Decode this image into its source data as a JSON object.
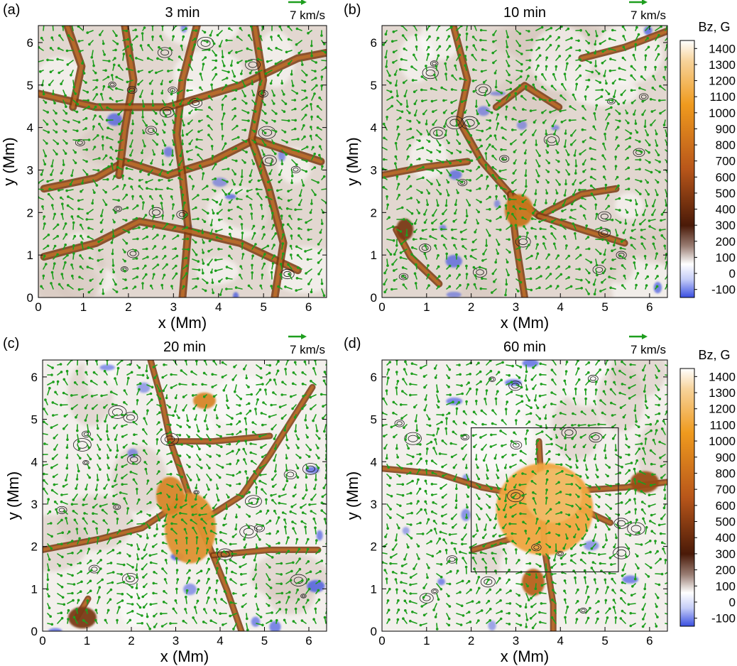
{
  "figure": {
    "colorbar_label": "Bz, G",
    "vector_label": "7 km/s",
    "colors": {
      "vector": "#1e9e1e",
      "contour": "#1a1a1a",
      "negative": "#3a4fe0",
      "frame": "#000000"
    }
  },
  "chart_data": [
    {
      "type": "heatmap",
      "panel_label": "(a)",
      "title": "3 min",
      "xlabel": "x (Mm)",
      "ylabel": "y (Mm)",
      "xlim": [
        0,
        6.4
      ],
      "ylim": [
        0,
        6.4
      ],
      "xticks": [
        0,
        1,
        2,
        3,
        4,
        5,
        6
      ],
      "yticks": [
        0,
        1,
        2,
        3,
        4,
        5,
        6
      ],
      "overlay": "velocity vectors (green) and contours",
      "colorbar": false
    },
    {
      "type": "heatmap",
      "panel_label": "(b)",
      "title": "10 min",
      "xlabel": "x (Mm)",
      "ylabel": "y (Mm)",
      "xlim": [
        0,
        6.4
      ],
      "ylim": [
        0,
        6.4
      ],
      "xticks": [
        0,
        1,
        2,
        3,
        4,
        5,
        6
      ],
      "yticks": [
        0,
        1,
        2,
        3,
        4,
        5,
        6
      ],
      "overlay": "velocity vectors (green) and contours",
      "colorbar": true,
      "colorbar_ticks": [
        1400,
        1300,
        1200,
        1100,
        1000,
        900,
        800,
        700,
        600,
        500,
        400,
        300,
        200,
        100,
        0,
        -100
      ]
    },
    {
      "type": "heatmap",
      "panel_label": "(c)",
      "title": "20 min",
      "xlabel": "x (Mm)",
      "ylabel": "y (Mm)",
      "xlim": [
        0,
        6.4
      ],
      "ylim": [
        0,
        6.4
      ],
      "xticks": [
        0,
        1,
        2,
        3,
        4,
        5,
        6
      ],
      "yticks": [
        0,
        1,
        2,
        3,
        4,
        5,
        6
      ],
      "overlay": "velocity vectors (green) and contours",
      "colorbar": false
    },
    {
      "type": "heatmap",
      "panel_label": "(d)",
      "title": "60 min",
      "xlabel": "x (Mm)",
      "ylabel": "y (Mm)",
      "xlim": [
        0,
        6.4
      ],
      "ylim": [
        0,
        6.4
      ],
      "xticks": [
        0,
        1,
        2,
        3,
        4,
        5,
        6
      ],
      "yticks": [
        0,
        1,
        2,
        3,
        4,
        5,
        6
      ],
      "overlay": "velocity vectors (green) and contours",
      "box": {
        "x": [
          2.0,
          5.3
        ],
        "y": [
          1.4,
          4.8
        ]
      },
      "colorbar": true,
      "colorbar_ticks": [
        1400,
        1300,
        1200,
        1100,
        1000,
        900,
        800,
        700,
        600,
        500,
        400,
        300,
        200,
        100,
        0,
        -100
      ]
    }
  ]
}
